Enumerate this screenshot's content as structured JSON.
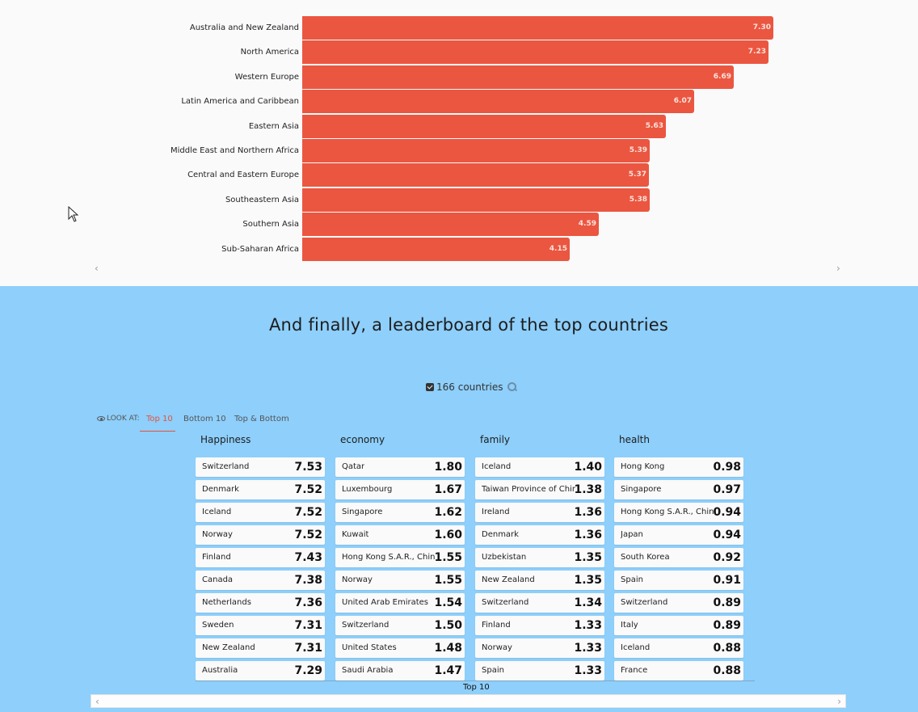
{
  "region_chart": {
    "chart_data": {
      "type": "bar",
      "orientation": "horizontal",
      "categories": [
        "Australia and New Zealand",
        "North America",
        "Western Europe",
        "Latin America and Caribbean",
        "Eastern Asia",
        "Middle East and Northern Africa",
        "Central and Eastern Europe",
        "Southeastern Asia",
        "Southern Asia",
        "Sub-Saharan Africa"
      ],
      "values": [
        7.3,
        7.23,
        6.69,
        6.07,
        5.63,
        5.39,
        5.37,
        5.38,
        4.59,
        4.15
      ],
      "value_labels": [
        "7.30",
        "7.23",
        "6.69",
        "6.07",
        "5.63",
        "5.39",
        "5.37",
        "5.38",
        "4.59",
        "4.15"
      ],
      "xlim": [
        0,
        7.3
      ],
      "color": "#eb5640"
    },
    "prev_label": "‹",
    "next_label": "›"
  },
  "leaderboard": {
    "title": "And finally, a leaderboard of the top countries",
    "filter_count": "166 countries",
    "look_at_label": "LOOK AT:",
    "tabs": [
      {
        "label": "Top 10",
        "active": true
      },
      {
        "label": "Bottom 10",
        "active": false
      },
      {
        "label": "Top & Bottom",
        "active": false
      }
    ],
    "columns": [
      {
        "header": "Happiness",
        "rows": [
          {
            "name": "Switzerland",
            "value": "7.53"
          },
          {
            "name": "Denmark",
            "value": "7.52"
          },
          {
            "name": "Iceland",
            "value": "7.52"
          },
          {
            "name": "Norway",
            "value": "7.52"
          },
          {
            "name": "Finland",
            "value": "7.43"
          },
          {
            "name": "Canada",
            "value": "7.38"
          },
          {
            "name": "Netherlands",
            "value": "7.36"
          },
          {
            "name": "Sweden",
            "value": "7.31"
          },
          {
            "name": "New Zealand",
            "value": "7.31"
          },
          {
            "name": "Australia",
            "value": "7.29"
          }
        ]
      },
      {
        "header": "economy",
        "rows": [
          {
            "name": "Qatar",
            "value": "1.80"
          },
          {
            "name": "Luxembourg",
            "value": "1.67"
          },
          {
            "name": "Singapore",
            "value": "1.62"
          },
          {
            "name": "Kuwait",
            "value": "1.60"
          },
          {
            "name": "Hong Kong S.A.R., China",
            "value": "1.55"
          },
          {
            "name": "Norway",
            "value": "1.55"
          },
          {
            "name": "United Arab Emirates",
            "value": "1.54"
          },
          {
            "name": "Switzerland",
            "value": "1.50"
          },
          {
            "name": "United States",
            "value": "1.48"
          },
          {
            "name": "Saudi Arabia",
            "value": "1.47"
          }
        ]
      },
      {
        "header": "family",
        "rows": [
          {
            "name": "Iceland",
            "value": "1.40"
          },
          {
            "name": "Taiwan Province of China",
            "value": "1.38"
          },
          {
            "name": "Ireland",
            "value": "1.36"
          },
          {
            "name": "Denmark",
            "value": "1.36"
          },
          {
            "name": "Uzbekistan",
            "value": "1.35"
          },
          {
            "name": "New Zealand",
            "value": "1.35"
          },
          {
            "name": "Switzerland",
            "value": "1.34"
          },
          {
            "name": "Finland",
            "value": "1.33"
          },
          {
            "name": "Norway",
            "value": "1.33"
          },
          {
            "name": "Spain",
            "value": "1.33"
          }
        ]
      },
      {
        "header": "health",
        "rows": [
          {
            "name": "Hong Kong",
            "value": "0.98"
          },
          {
            "name": "Singapore",
            "value": "0.97"
          },
          {
            "name": "Hong Kong S.A.R., China",
            "value": "0.94"
          },
          {
            "name": "Japan",
            "value": "0.94"
          },
          {
            "name": "South Korea",
            "value": "0.92"
          },
          {
            "name": "Spain",
            "value": "0.91"
          },
          {
            "name": "Switzerland",
            "value": "0.89"
          },
          {
            "name": "Italy",
            "value": "0.89"
          },
          {
            "name": "Iceland",
            "value": "0.88"
          },
          {
            "name": "France",
            "value": "0.88"
          }
        ]
      }
    ],
    "footer_label": "Top 10",
    "scroll_left": "‹",
    "scroll_right": "›"
  },
  "colors": {
    "accent": "#e8513c",
    "bar": "#eb5640",
    "section_bg": "#8ecffb"
  }
}
